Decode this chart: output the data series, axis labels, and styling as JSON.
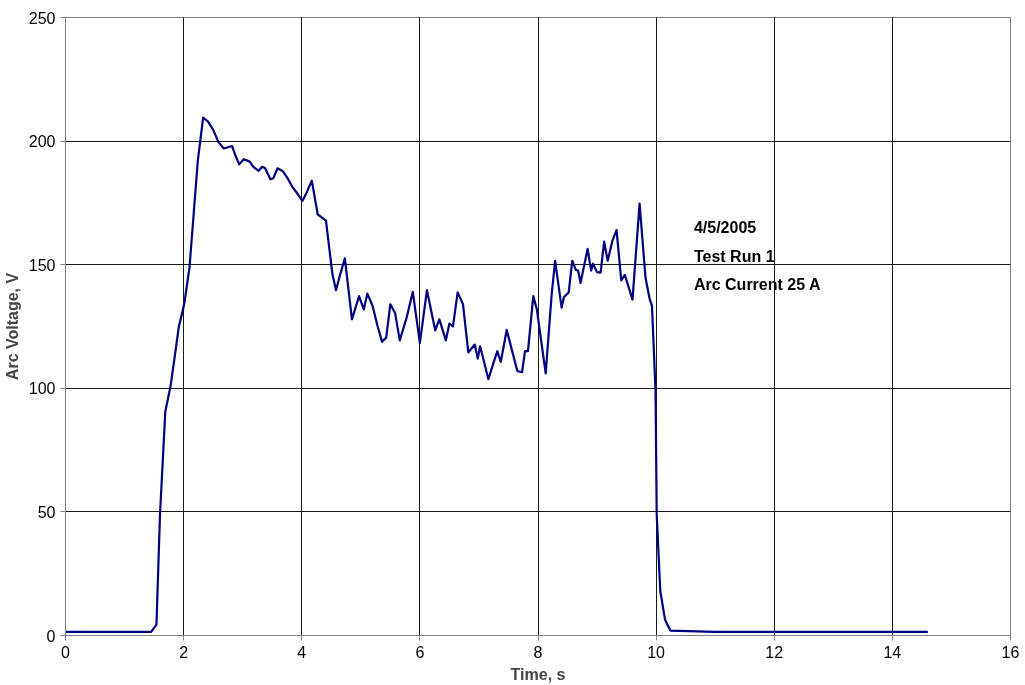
{
  "chart_data": {
    "type": "line",
    "xlabel": "Time, s",
    "ylabel": "Arc Voltage, V",
    "xlim": [
      0,
      16
    ],
    "xticks": [
      0,
      2,
      4,
      6,
      8,
      10,
      12,
      14,
      16
    ],
    "ylim": [
      0,
      250
    ],
    "yticks": [
      0,
      50,
      100,
      150,
      200,
      250
    ],
    "grid": true,
    "marker": "none",
    "line_style": "solid",
    "annotations": [
      "4/5/2005",
      "Test Run 1",
      "Arc Current 25 A"
    ],
    "series": [
      {
        "color": "#000080",
        "x": [
          0,
          0.5,
          1.0,
          1.45,
          1.54,
          1.6,
          1.69,
          1.78,
          1.92,
          2.01,
          2.1,
          2.24,
          2.33,
          2.41,
          2.5,
          2.59,
          2.68,
          2.82,
          2.88,
          2.94,
          3.02,
          3.12,
          3.18,
          3.27,
          3.33,
          3.38,
          3.47,
          3.52,
          3.59,
          3.68,
          3.76,
          3.84,
          3.92,
          4.01,
          4.08,
          4.17,
          4.27,
          4.41,
          4.52,
          4.58,
          4.65,
          4.73,
          4.85,
          4.97,
          5.05,
          5.11,
          5.2,
          5.28,
          5.36,
          5.43,
          5.5,
          5.58,
          5.66,
          5.78,
          5.88,
          6.0,
          6.12,
          6.26,
          6.33,
          6.44,
          6.5,
          6.56,
          6.64,
          6.73,
          6.82,
          6.93,
          6.98,
          7.02,
          7.16,
          7.24,
          7.31,
          7.37,
          7.47,
          7.65,
          7.73,
          7.78,
          7.83,
          7.92,
          7.98,
          8.13,
          8.23,
          8.29,
          8.4,
          8.44,
          8.52,
          8.58,
          8.64,
          8.68,
          8.72,
          8.84,
          8.9,
          8.93,
          9.0,
          9.06,
          9.12,
          9.18,
          9.26,
          9.33,
          9.41,
          9.47,
          9.6,
          9.72,
          9.82,
          9.89,
          9.93,
          9.99,
          10.01,
          10.07,
          10.15,
          10.24,
          11,
          12,
          13,
          14,
          14.6
        ],
        "values": [
          1.5,
          1.5,
          1.5,
          1.5,
          4.4,
          49,
          90.6,
          101,
          125,
          134,
          149,
          192,
          209.5,
          208,
          204.6,
          199.6,
          197,
          198,
          194,
          190.6,
          192.7,
          191.7,
          189.6,
          188,
          189.6,
          189,
          184.6,
          185,
          189,
          187.8,
          185,
          181.5,
          179,
          175.8,
          179,
          184,
          170.4,
          167.8,
          146,
          139.7,
          146,
          152.6,
          127.9,
          137.3,
          131.9,
          138.3,
          133.3,
          125.5,
          118.8,
          120.5,
          134,
          130.5,
          119.4,
          129,
          139,
          118.4,
          139.7,
          123.4,
          127.9,
          119.4,
          126.2,
          125,
          138.8,
          134,
          114.5,
          117.7,
          112,
          117,
          103.7,
          109.8,
          115,
          110.7,
          123.6,
          107,
          106.5,
          115,
          115,
          137.3,
          132,
          106,
          137.6,
          151.6,
          132.6,
          136.9,
          138.8,
          151.6,
          147.9,
          147.6,
          142.6,
          156.4,
          147.6,
          150.4,
          147,
          146.8,
          159.3,
          151.6,
          159.7,
          164,
          143.6,
          145.9,
          135.9,
          174.7,
          144.7,
          136.2,
          133.3,
          99,
          49,
          18,
          6.5,
          2,
          1.5,
          1.5,
          1.5,
          1.5,
          1.5
        ]
      }
    ]
  }
}
